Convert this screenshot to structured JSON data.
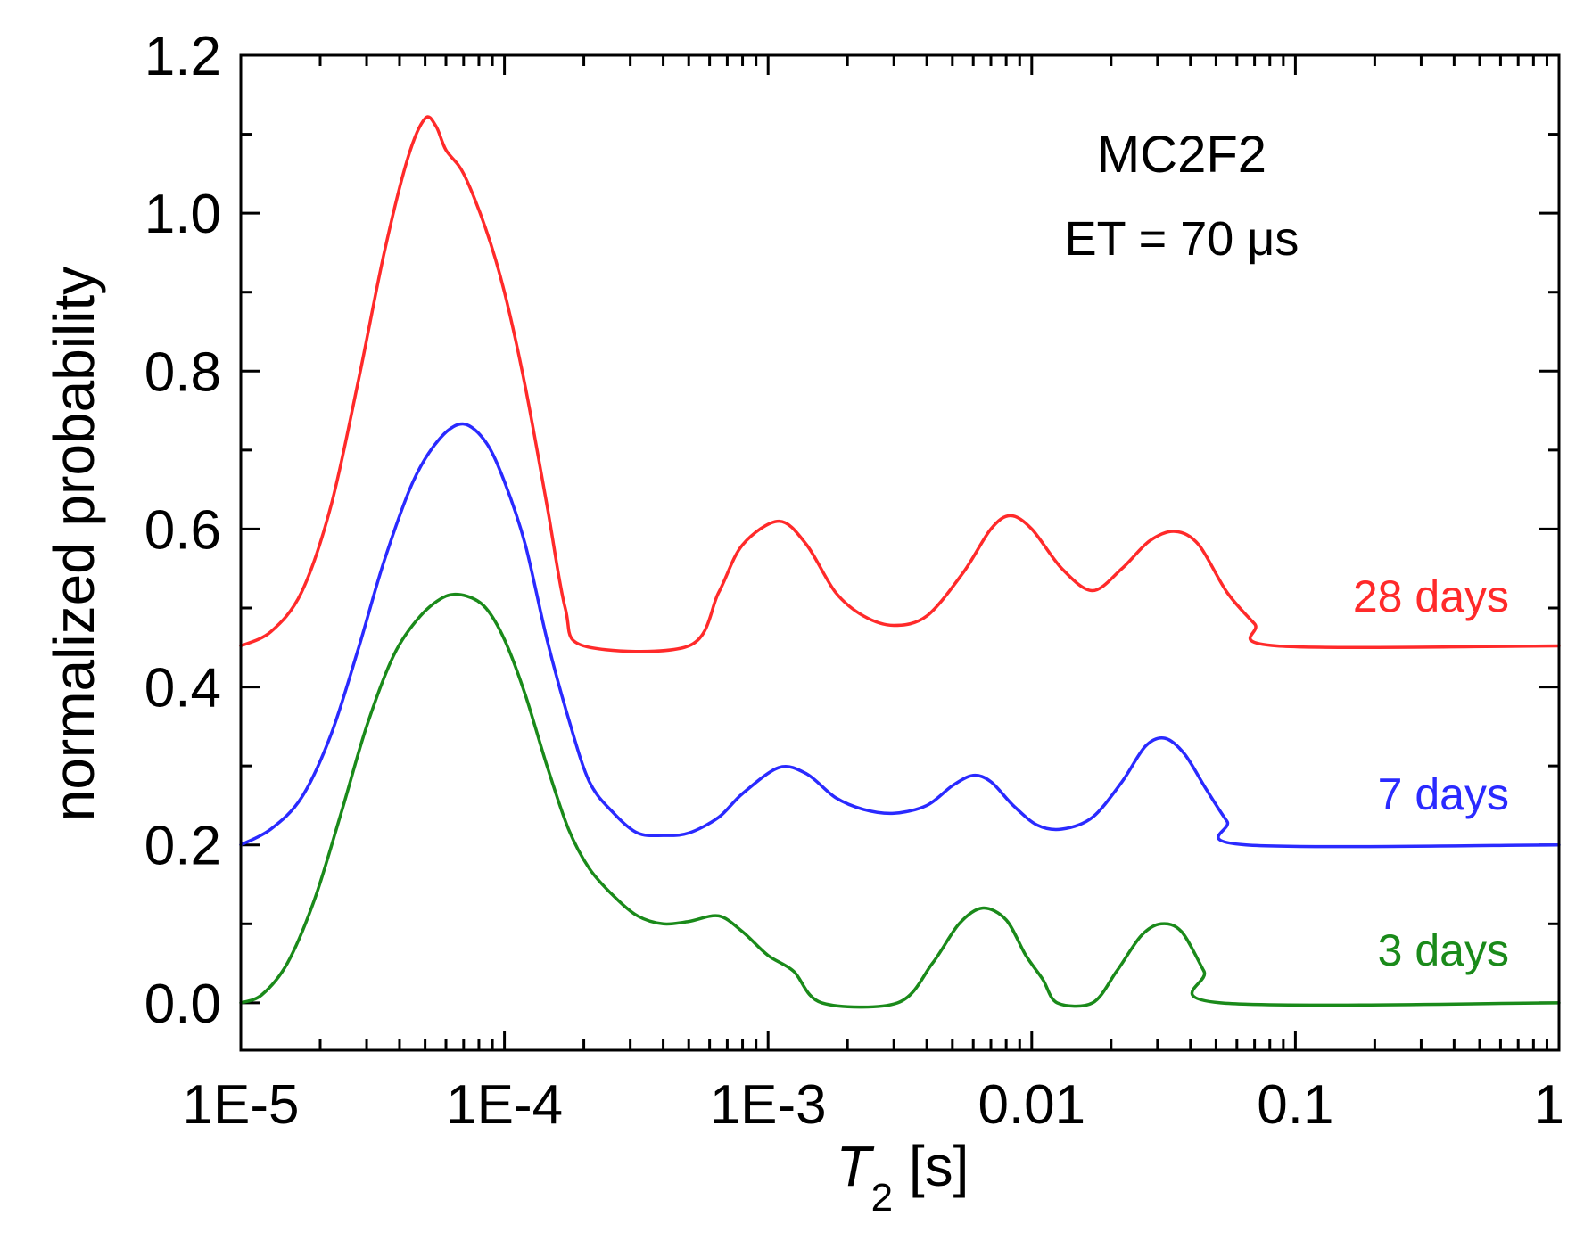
{
  "chart_data": {
    "type": "line",
    "title": "",
    "xlabel": "T",
    "xlabel_subscript": "2",
    "xlabel_unit": " [s]",
    "ylabel": "normalized probability",
    "xscale": "log",
    "xlim": [
      1e-05,
      1
    ],
    "ylim": [
      -0.06,
      1.2
    ],
    "grid": false,
    "x_ticks": [
      {
        "value": 1e-05,
        "label": "1E-5"
      },
      {
        "value": 0.0001,
        "label": "1E-4"
      },
      {
        "value": 0.001,
        "label": "1E-3"
      },
      {
        "value": 0.01,
        "label": "0.01"
      },
      {
        "value": 0.1,
        "label": "0.1"
      },
      {
        "value": 1,
        "label": "1"
      }
    ],
    "y_ticks": [
      {
        "value": 0.0,
        "label": "0.0"
      },
      {
        "value": 0.2,
        "label": "0.2"
      },
      {
        "value": 0.4,
        "label": "0.4"
      },
      {
        "value": 0.6,
        "label": "0.6"
      },
      {
        "value": 0.8,
        "label": "0.8"
      },
      {
        "value": 1.0,
        "label": "1.0"
      },
      {
        "value": 1.2,
        "label": "1.2"
      }
    ],
    "annotation": {
      "title": "MC2F2",
      "subtitle": "ET = 70 μs"
    },
    "series": [
      {
        "name": "28 days",
        "color": "#ff2a2a",
        "points": [
          [
            1e-05,
            0.452
          ],
          [
            1.3e-05,
            0.47
          ],
          [
            1.7e-05,
            0.52
          ],
          [
            2.2e-05,
            0.63
          ],
          [
            2.8e-05,
            0.79
          ],
          [
            3.5e-05,
            0.95
          ],
          [
            4.3e-05,
            1.07
          ],
          [
            5e-05,
            1.12
          ],
          [
            5.5e-05,
            1.11
          ],
          [
            6e-05,
            1.08
          ],
          [
            7e-05,
            1.05
          ],
          [
            8.5e-05,
            0.98
          ],
          [
            0.0001,
            0.9
          ],
          [
            0.00012,
            0.78
          ],
          [
            0.000145,
            0.63
          ],
          [
            0.00017,
            0.5
          ],
          [
            0.0002,
            0.452
          ],
          [
            0.0005,
            0.452
          ],
          [
            0.00065,
            0.52
          ],
          [
            0.0008,
            0.58
          ],
          [
            0.0011,
            0.61
          ],
          [
            0.0014,
            0.58
          ],
          [
            0.0018,
            0.52
          ],
          [
            0.0023,
            0.49
          ],
          [
            0.003,
            0.478
          ],
          [
            0.004,
            0.49
          ],
          [
            0.0055,
            0.545
          ],
          [
            0.007,
            0.6
          ],
          [
            0.0083,
            0.617
          ],
          [
            0.01,
            0.6
          ],
          [
            0.013,
            0.55
          ],
          [
            0.017,
            0.522
          ],
          [
            0.022,
            0.55
          ],
          [
            0.028,
            0.585
          ],
          [
            0.035,
            0.597
          ],
          [
            0.043,
            0.58
          ],
          [
            0.055,
            0.52
          ],
          [
            0.07,
            0.48
          ],
          [
            0.085,
            0.452
          ],
          [
            1.0,
            0.452
          ]
        ]
      },
      {
        "name": "7 days",
        "color": "#2a2aff",
        "points": [
          [
            1e-05,
            0.2
          ],
          [
            1.3e-05,
            0.22
          ],
          [
            1.7e-05,
            0.26
          ],
          [
            2.2e-05,
            0.34
          ],
          [
            2.8e-05,
            0.45
          ],
          [
            3.5e-05,
            0.56
          ],
          [
            4.5e-05,
            0.66
          ],
          [
            5.7e-05,
            0.715
          ],
          [
            7e-05,
            0.733
          ],
          [
            8.5e-05,
            0.71
          ],
          [
            0.0001,
            0.66
          ],
          [
            0.00012,
            0.58
          ],
          [
            0.000145,
            0.46
          ],
          [
            0.000175,
            0.36
          ],
          [
            0.00021,
            0.28
          ],
          [
            0.00026,
            0.24
          ],
          [
            0.00032,
            0.215
          ],
          [
            0.0004,
            0.212
          ],
          [
            0.0005,
            0.215
          ],
          [
            0.00065,
            0.235
          ],
          [
            0.0008,
            0.265
          ],
          [
            0.0011,
            0.298
          ],
          [
            0.0014,
            0.29
          ],
          [
            0.0018,
            0.26
          ],
          [
            0.0023,
            0.245
          ],
          [
            0.003,
            0.24
          ],
          [
            0.004,
            0.25
          ],
          [
            0.005,
            0.275
          ],
          [
            0.006,
            0.288
          ],
          [
            0.007,
            0.28
          ],
          [
            0.0085,
            0.25
          ],
          [
            0.0105,
            0.225
          ],
          [
            0.013,
            0.22
          ],
          [
            0.017,
            0.235
          ],
          [
            0.022,
            0.28
          ],
          [
            0.027,
            0.325
          ],
          [
            0.032,
            0.335
          ],
          [
            0.038,
            0.315
          ],
          [
            0.046,
            0.27
          ],
          [
            0.055,
            0.23
          ],
          [
            0.065,
            0.2
          ],
          [
            1.0,
            0.2
          ]
        ]
      },
      {
        "name": "3 days",
        "color": "#1a8a1a",
        "points": [
          [
            1e-05,
            0.0
          ],
          [
            1.2e-05,
            0.01
          ],
          [
            1.5e-05,
            0.05
          ],
          [
            1.9e-05,
            0.13
          ],
          [
            2.4e-05,
            0.24
          ],
          [
            3e-05,
            0.35
          ],
          [
            3.8e-05,
            0.44
          ],
          [
            4.8e-05,
            0.49
          ],
          [
            6e-05,
            0.515
          ],
          [
            7.2e-05,
            0.515
          ],
          [
            8.5e-05,
            0.5
          ],
          [
            0.0001,
            0.46
          ],
          [
            0.00012,
            0.39
          ],
          [
            0.000145,
            0.3
          ],
          [
            0.000175,
            0.22
          ],
          [
            0.00021,
            0.17
          ],
          [
            0.00026,
            0.135
          ],
          [
            0.00032,
            0.11
          ],
          [
            0.0004,
            0.1
          ],
          [
            0.0005,
            0.103
          ],
          [
            0.00065,
            0.11
          ],
          [
            0.0008,
            0.09
          ],
          [
            0.001,
            0.06
          ],
          [
            0.00125,
            0.04
          ],
          [
            0.0016,
            0.0
          ],
          [
            0.0031,
            0.0
          ],
          [
            0.0042,
            0.05
          ],
          [
            0.0053,
            0.1
          ],
          [
            0.0065,
            0.12
          ],
          [
            0.008,
            0.105
          ],
          [
            0.0095,
            0.06
          ],
          [
            0.011,
            0.03
          ],
          [
            0.0125,
            0.0
          ],
          [
            0.017,
            0.0
          ],
          [
            0.021,
            0.04
          ],
          [
            0.026,
            0.085
          ],
          [
            0.031,
            0.1
          ],
          [
            0.037,
            0.09
          ],
          [
            0.045,
            0.04
          ],
          [
            0.052,
            0.0
          ],
          [
            1.0,
            0.0
          ]
        ]
      }
    ]
  }
}
